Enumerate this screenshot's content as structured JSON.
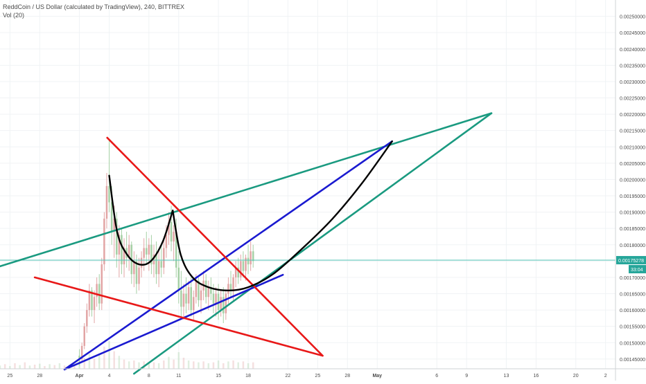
{
  "header": {
    "symbol_title": "ReddCoin / US Dollar (calculated by TradingView), 240, BITTREX",
    "volume_label": "Vol (20)"
  },
  "price_badge": {
    "value": "0.00175278",
    "countdown": "33:04"
  },
  "colors": {
    "background": "#ffffff",
    "grid": "#f0f3f5",
    "axis_text": "#4a4a4a",
    "up_candle": "#e2a5a5",
    "down_candle": "#a5d0a5",
    "price_line": "#4fc3b5",
    "badge": "#26a69a",
    "trend_green": "#1a9a80",
    "trend_blue": "#1a1ad0",
    "trend_red": "#e81818",
    "curve_black": "#000000"
  },
  "chart_data": {
    "type": "candlestick",
    "title": "ReddCoin / US Dollar (calculated by TradingView), 240, BITTREX",
    "ylim": [
      0.00142,
      0.00255
    ],
    "y_ticks": [
      "0.00145000",
      "0.00150000",
      "0.00155000",
      "0.00160000",
      "0.00165000",
      "0.00170000",
      "0.00175000",
      "0.00180000",
      "0.00185000",
      "0.00190000",
      "0.00195000",
      "0.00200000",
      "0.00205000",
      "0.00210000",
      "0.00215000",
      "0.00220000",
      "0.00225000",
      "0.00230000",
      "0.00235000",
      "0.00240000",
      "0.00245000",
      "0.00250000"
    ],
    "x_ticks": [
      "25",
      "28",
      "Apr",
      "4",
      "8",
      "11",
      "15",
      "18",
      "22",
      "25",
      "28",
      "May",
      "6",
      "9",
      "13",
      "16",
      "20",
      "2"
    ],
    "x_tick_days": [
      -7,
      -4,
      0,
      3,
      7,
      10,
      14,
      17,
      21,
      24,
      27,
      30,
      36,
      39,
      43,
      46,
      50,
      53
    ],
    "x_range_days": [
      -8,
      54
    ],
    "last_price": 0.00175278,
    "candles": [
      {
        "d": 0.0,
        "o": 0.00146,
        "h": 0.00148,
        "l": 0.00143,
        "c": 0.00145
      },
      {
        "d": 0.25,
        "o": 0.00145,
        "h": 0.0015,
        "l": 0.00144,
        "c": 0.00149
      },
      {
        "d": 0.5,
        "o": 0.00149,
        "h": 0.00156,
        "l": 0.00148,
        "c": 0.00155
      },
      {
        "d": 0.75,
        "o": 0.00155,
        "h": 0.00162,
        "l": 0.00153,
        "c": 0.0016
      },
      {
        "d": 1.0,
        "o": 0.0016,
        "h": 0.00168,
        "l": 0.00158,
        "c": 0.00166
      },
      {
        "d": 1.25,
        "o": 0.00166,
        "h": 0.00167,
        "l": 0.00158,
        "c": 0.0016
      },
      {
        "d": 1.5,
        "o": 0.0016,
        "h": 0.00166,
        "l": 0.00156,
        "c": 0.00164
      },
      {
        "d": 1.75,
        "o": 0.00164,
        "h": 0.0017,
        "l": 0.00161,
        "c": 0.00168
      },
      {
        "d": 2.0,
        "o": 0.00168,
        "h": 0.00171,
        "l": 0.0016,
        "c": 0.00162
      },
      {
        "d": 2.25,
        "o": 0.00162,
        "h": 0.00176,
        "l": 0.0016,
        "c": 0.00174
      },
      {
        "d": 2.5,
        "o": 0.00174,
        "h": 0.0019,
        "l": 0.00172,
        "c": 0.00188
      },
      {
        "d": 2.75,
        "o": 0.00188,
        "h": 0.00202,
        "l": 0.00185,
        "c": 0.00198
      },
      {
        "d": 3.0,
        "o": 0.00198,
        "h": 0.00212,
        "l": 0.0019,
        "c": 0.00193
      },
      {
        "d": 3.25,
        "o": 0.00193,
        "h": 0.00198,
        "l": 0.0018,
        "c": 0.00184
      },
      {
        "d": 3.5,
        "o": 0.00184,
        "h": 0.00192,
        "l": 0.00176,
        "c": 0.00188
      },
      {
        "d": 3.75,
        "o": 0.00188,
        "h": 0.0019,
        "l": 0.00173,
        "c": 0.00177
      },
      {
        "d": 4.0,
        "o": 0.00177,
        "h": 0.00186,
        "l": 0.0017,
        "c": 0.00183
      },
      {
        "d": 4.25,
        "o": 0.00183,
        "h": 0.00185,
        "l": 0.00171,
        "c": 0.00174
      },
      {
        "d": 4.5,
        "o": 0.00174,
        "h": 0.00182,
        "l": 0.0017,
        "c": 0.00179
      },
      {
        "d": 4.75,
        "o": 0.00179,
        "h": 0.00184,
        "l": 0.00173,
        "c": 0.00176
      },
      {
        "d": 5.0,
        "o": 0.00176,
        "h": 0.00183,
        "l": 0.00172,
        "c": 0.0018
      },
      {
        "d": 5.25,
        "o": 0.0018,
        "h": 0.00181,
        "l": 0.00168,
        "c": 0.00171
      },
      {
        "d": 5.5,
        "o": 0.00171,
        "h": 0.00178,
        "l": 0.00167,
        "c": 0.00175
      },
      {
        "d": 5.75,
        "o": 0.00175,
        "h": 0.00177,
        "l": 0.00165,
        "c": 0.00168
      },
      {
        "d": 6.0,
        "o": 0.00168,
        "h": 0.00176,
        "l": 0.00166,
        "c": 0.00173
      },
      {
        "d": 6.25,
        "o": 0.00173,
        "h": 0.00178,
        "l": 0.0017,
        "c": 0.00176
      },
      {
        "d": 6.5,
        "o": 0.00176,
        "h": 0.00182,
        "l": 0.00172,
        "c": 0.00179
      },
      {
        "d": 6.75,
        "o": 0.00179,
        "h": 0.00184,
        "l": 0.00174,
        "c": 0.00177
      },
      {
        "d": 7.0,
        "o": 0.00177,
        "h": 0.00182,
        "l": 0.00172,
        "c": 0.0018
      },
      {
        "d": 7.25,
        "o": 0.0018,
        "h": 0.00183,
        "l": 0.00171,
        "c": 0.00174
      },
      {
        "d": 7.5,
        "o": 0.00174,
        "h": 0.0018,
        "l": 0.0017,
        "c": 0.00177
      },
      {
        "d": 7.75,
        "o": 0.00177,
        "h": 0.00181,
        "l": 0.00168,
        "c": 0.00171
      },
      {
        "d": 8.0,
        "o": 0.00171,
        "h": 0.00178,
        "l": 0.00167,
        "c": 0.00175
      },
      {
        "d": 8.25,
        "o": 0.00175,
        "h": 0.0018,
        "l": 0.0017,
        "c": 0.00173
      },
      {
        "d": 8.5,
        "o": 0.00173,
        "h": 0.00182,
        "l": 0.00171,
        "c": 0.00179
      },
      {
        "d": 8.75,
        "o": 0.00179,
        "h": 0.00186,
        "l": 0.00176,
        "c": 0.00183
      },
      {
        "d": 9.0,
        "o": 0.00183,
        "h": 0.0019,
        "l": 0.0018,
        "c": 0.00187
      },
      {
        "d": 9.25,
        "o": 0.00187,
        "h": 0.00192,
        "l": 0.00178,
        "c": 0.00181
      },
      {
        "d": 9.5,
        "o": 0.00181,
        "h": 0.00186,
        "l": 0.00175,
        "c": 0.00184
      },
      {
        "d": 9.75,
        "o": 0.00184,
        "h": 0.00188,
        "l": 0.0017,
        "c": 0.00173
      },
      {
        "d": 10.0,
        "o": 0.00173,
        "h": 0.00178,
        "l": 0.00162,
        "c": 0.00166
      },
      {
        "d": 10.25,
        "o": 0.00166,
        "h": 0.00172,
        "l": 0.00158,
        "c": 0.00161
      },
      {
        "d": 10.5,
        "o": 0.00161,
        "h": 0.00168,
        "l": 0.00157,
        "c": 0.00165
      },
      {
        "d": 10.75,
        "o": 0.00165,
        "h": 0.0017,
        "l": 0.00159,
        "c": 0.00162
      },
      {
        "d": 11.0,
        "o": 0.00162,
        "h": 0.00169,
        "l": 0.0016,
        "c": 0.00167
      },
      {
        "d": 11.25,
        "o": 0.00167,
        "h": 0.0017,
        "l": 0.00158,
        "c": 0.0016
      },
      {
        "d": 11.5,
        "o": 0.0016,
        "h": 0.00166,
        "l": 0.00157,
        "c": 0.00164
      },
      {
        "d": 11.75,
        "o": 0.00164,
        "h": 0.00171,
        "l": 0.00162,
        "c": 0.00169
      },
      {
        "d": 12.0,
        "o": 0.00169,
        "h": 0.0017,
        "l": 0.00161,
        "c": 0.00163
      },
      {
        "d": 12.25,
        "o": 0.00163,
        "h": 0.00168,
        "l": 0.00159,
        "c": 0.00166
      },
      {
        "d": 12.5,
        "o": 0.00166,
        "h": 0.00172,
        "l": 0.00163,
        "c": 0.00169
      },
      {
        "d": 12.75,
        "o": 0.00169,
        "h": 0.00171,
        "l": 0.00162,
        "c": 0.00164
      },
      {
        "d": 13.0,
        "o": 0.00164,
        "h": 0.00169,
        "l": 0.0016,
        "c": 0.00167
      },
      {
        "d": 13.25,
        "o": 0.00167,
        "h": 0.0017,
        "l": 0.00163,
        "c": 0.00165
      },
      {
        "d": 13.5,
        "o": 0.00165,
        "h": 0.00168,
        "l": 0.00159,
        "c": 0.00162
      },
      {
        "d": 13.75,
        "o": 0.00162,
        "h": 0.00167,
        "l": 0.00158,
        "c": 0.00165
      },
      {
        "d": 14.0,
        "o": 0.00165,
        "h": 0.00168,
        "l": 0.00157,
        "c": 0.0016
      },
      {
        "d": 14.25,
        "o": 0.0016,
        "h": 0.00166,
        "l": 0.00158,
        "c": 0.00164
      },
      {
        "d": 14.5,
        "o": 0.00164,
        "h": 0.00167,
        "l": 0.00156,
        "c": 0.00159
      },
      {
        "d": 14.75,
        "o": 0.00159,
        "h": 0.00166,
        "l": 0.00157,
        "c": 0.00165
      },
      {
        "d": 15.0,
        "o": 0.00165,
        "h": 0.0017,
        "l": 0.00162,
        "c": 0.00168
      },
      {
        "d": 15.25,
        "o": 0.00168,
        "h": 0.00172,
        "l": 0.00164,
        "c": 0.00166
      },
      {
        "d": 15.5,
        "o": 0.00166,
        "h": 0.00171,
        "l": 0.00163,
        "c": 0.0017
      },
      {
        "d": 15.75,
        "o": 0.0017,
        "h": 0.00175,
        "l": 0.00167,
        "c": 0.00173
      },
      {
        "d": 16.0,
        "o": 0.00173,
        "h": 0.00176,
        "l": 0.00168,
        "c": 0.0017
      },
      {
        "d": 16.25,
        "o": 0.0017,
        "h": 0.00177,
        "l": 0.00169,
        "c": 0.00175
      },
      {
        "d": 16.5,
        "o": 0.00175,
        "h": 0.00178,
        "l": 0.0017,
        "c": 0.00172
      },
      {
        "d": 16.75,
        "o": 0.00172,
        "h": 0.00177,
        "l": 0.00169,
        "c": 0.00176
      },
      {
        "d": 17.0,
        "o": 0.00176,
        "h": 0.0018,
        "l": 0.00171,
        "c": 0.00174
      },
      {
        "d": 17.25,
        "o": 0.00174,
        "h": 0.00181,
        "l": 0.00172,
        "c": 0.00178
      },
      {
        "d": 17.5,
        "o": 0.00178,
        "h": 0.0018,
        "l": 0.00173,
        "c": 0.00175
      }
    ],
    "volume": [
      {
        "d": -8.0,
        "v": 0.35
      },
      {
        "d": -7.5,
        "v": 0.5
      },
      {
        "d": -7.0,
        "v": 0.3
      },
      {
        "d": -6.5,
        "v": 0.6
      },
      {
        "d": -6.0,
        "v": 0.4
      },
      {
        "d": -5.5,
        "v": 0.7
      },
      {
        "d": -5.0,
        "v": 0.35
      },
      {
        "d": -4.5,
        "v": 0.45
      },
      {
        "d": -4.0,
        "v": 0.55
      },
      {
        "d": -3.5,
        "v": 0.3
      },
      {
        "d": -3.0,
        "v": 0.5
      },
      {
        "d": -2.5,
        "v": 0.4
      },
      {
        "d": -2.0,
        "v": 0.6
      },
      {
        "d": -1.5,
        "v": 0.35
      },
      {
        "d": -1.0,
        "v": 0.45
      },
      {
        "d": -0.5,
        "v": 0.5
      },
      {
        "d": 0.0,
        "v": 0.9
      },
      {
        "d": 0.5,
        "v": 1.2
      },
      {
        "d": 1.0,
        "v": 1.6
      },
      {
        "d": 1.5,
        "v": 1.1
      },
      {
        "d": 2.0,
        "v": 1.5
      },
      {
        "d": 2.5,
        "v": 2.4
      },
      {
        "d": 3.0,
        "v": 3.0
      },
      {
        "d": 3.5,
        "v": 1.9
      },
      {
        "d": 4.0,
        "v": 1.4
      },
      {
        "d": 4.5,
        "v": 1.0
      },
      {
        "d": 5.0,
        "v": 0.8
      },
      {
        "d": 5.5,
        "v": 0.9
      },
      {
        "d": 6.0,
        "v": 0.7
      },
      {
        "d": 6.5,
        "v": 0.8
      },
      {
        "d": 7.0,
        "v": 0.6
      },
      {
        "d": 7.5,
        "v": 0.7
      },
      {
        "d": 8.0,
        "v": 0.6
      },
      {
        "d": 8.5,
        "v": 0.9
      },
      {
        "d": 9.0,
        "v": 1.3
      },
      {
        "d": 9.5,
        "v": 1.0
      },
      {
        "d": 10.0,
        "v": 1.8
      },
      {
        "d": 10.5,
        "v": 1.2
      },
      {
        "d": 11.0,
        "v": 0.9
      },
      {
        "d": 11.5,
        "v": 0.8
      },
      {
        "d": 12.0,
        "v": 0.7
      },
      {
        "d": 12.5,
        "v": 0.8
      },
      {
        "d": 13.0,
        "v": 0.6
      },
      {
        "d": 13.5,
        "v": 0.7
      },
      {
        "d": 14.0,
        "v": 0.9
      },
      {
        "d": 14.5,
        "v": 0.6
      },
      {
        "d": 15.0,
        "v": 0.8
      },
      {
        "d": 15.5,
        "v": 0.9
      },
      {
        "d": 16.0,
        "v": 0.7
      },
      {
        "d": 16.5,
        "v": 0.8
      },
      {
        "d": 17.0,
        "v": 0.6
      },
      {
        "d": 17.5,
        "v": 0.7
      }
    ],
    "annotations": [
      {
        "kind": "trendline",
        "color": "green",
        "from": {
          "d": -8.0,
          "p": 0.001734
        },
        "to": {
          "d": 41.5,
          "p": 0.002203
        }
      },
      {
        "kind": "trendline",
        "color": "green",
        "from": {
          "d": 5.5,
          "p": 0.001405
        },
        "to": {
          "d": 41.5,
          "p": 0.002203
        }
      },
      {
        "kind": "trendline",
        "color": "blue",
        "from": {
          "d": -1.5,
          "p": 0.001418
        },
        "to": {
          "d": 31.5,
          "p": 0.002117
        }
      },
      {
        "kind": "trendline",
        "color": "blue",
        "from": {
          "d": -1.5,
          "p": 0.001418
        },
        "to": {
          "d": 20.5,
          "p": 0.001708
        }
      },
      {
        "kind": "trendline",
        "color": "red",
        "from": {
          "d": 2.8,
          "p": 0.002128
        },
        "to": {
          "d": 24.5,
          "p": 0.00146
        }
      },
      {
        "kind": "trendline",
        "color": "red",
        "from": {
          "d": -4.5,
          "p": 0.0017
        },
        "to": {
          "d": 24.5,
          "p": 0.00146
        }
      },
      {
        "kind": "curve",
        "color": "black",
        "points": [
          {
            "d": 3.0,
            "p": 0.002012
          },
          {
            "d": 3.8,
            "p": 0.00184
          },
          {
            "d": 4.8,
            "p": 0.00177
          },
          {
            "d": 6.0,
            "p": 0.00174
          },
          {
            "d": 7.2,
            "p": 0.00175
          },
          {
            "d": 8.4,
            "p": 0.00181
          },
          {
            "d": 9.4,
            "p": 0.001905
          }
        ]
      },
      {
        "kind": "curve",
        "color": "black",
        "points": [
          {
            "d": 9.4,
            "p": 0.001905
          },
          {
            "d": 10.2,
            "p": 0.00177
          },
          {
            "d": 11.4,
            "p": 0.0017
          },
          {
            "d": 13.0,
            "p": 0.00167
          },
          {
            "d": 15.0,
            "p": 0.00166
          },
          {
            "d": 17.0,
            "p": 0.00167
          },
          {
            "d": 19.5,
            "p": 0.00171
          },
          {
            "d": 22.5,
            "p": 0.00179
          },
          {
            "d": 25.5,
            "p": 0.00188
          },
          {
            "d": 28.5,
            "p": 0.00199
          },
          {
            "d": 31.5,
            "p": 0.002117
          }
        ]
      }
    ]
  }
}
